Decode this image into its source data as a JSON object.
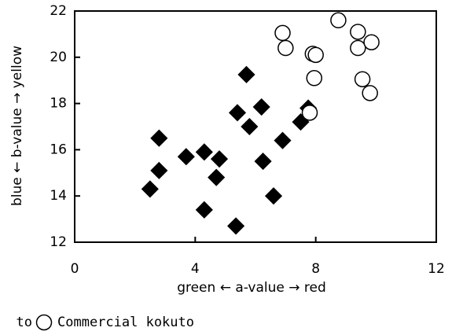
{
  "chart_data": {
    "type": "scatter",
    "xlabel": "green  ←  a-value  →  red",
    "ylabel": "blue  ←  b-value  →  yellow",
    "xlim": [
      0,
      12
    ],
    "xticks": [
      0,
      4,
      8,
      12
    ],
    "ylim": [
      12,
      22
    ],
    "yticks": [
      12,
      14,
      16,
      18,
      20,
      22
    ],
    "series": [
      {
        "name": "to",
        "marker": "diamond",
        "color": "#000000",
        "x": [
          2.5,
          2.8,
          2.8,
          3.7,
          4.3,
          4.3,
          4.8,
          4.7,
          5.35,
          5.4,
          5.7,
          5.8,
          6.2,
          6.25,
          6.6,
          6.9,
          7.5,
          7.75
        ],
        "y": [
          14.3,
          15.1,
          16.5,
          15.7,
          15.9,
          13.4,
          15.6,
          14.8,
          12.7,
          17.6,
          19.25,
          17.0,
          17.85,
          15.5,
          14.0,
          16.4,
          17.2,
          17.8
        ]
      },
      {
        "name": "Commercial kokuto",
        "marker": "circle",
        "color": "#ffffff",
        "x": [
          6.9,
          7.0,
          7.9,
          8.0,
          7.95,
          7.8,
          8.75,
          9.4,
          9.4,
          9.85,
          9.55,
          9.8
        ],
        "y": [
          21.05,
          20.4,
          20.15,
          20.1,
          19.1,
          17.6,
          21.6,
          21.1,
          20.4,
          20.65,
          19.05,
          18.45
        ]
      }
    ]
  }
}
